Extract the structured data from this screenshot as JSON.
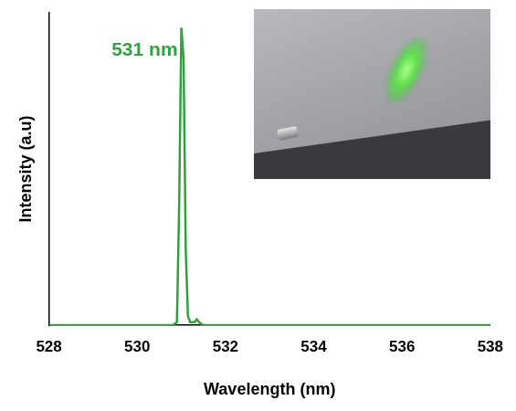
{
  "chart_data": {
    "type": "line",
    "x": [
      528,
      530.8,
      530.9,
      530.95,
      531.0,
      531.05,
      531.1,
      531.15,
      531.2,
      531.3,
      531.35,
      531.4,
      531.5,
      532,
      538
    ],
    "values": [
      0,
      0,
      0.01,
      0.4,
      1.0,
      0.9,
      0.25,
      0.03,
      0.01,
      0.01,
      0.02,
      0.01,
      0,
      0,
      0
    ],
    "color": "#33a043",
    "xlabel": "Wavelength (nm)",
    "ylabel": "Intensity (a.u)",
    "xlim": [
      528,
      538
    ],
    "xticks": [
      528,
      530,
      532,
      534,
      536,
      538
    ],
    "ylim": [
      0,
      1.05
    ],
    "tick_labels": "x",
    "grid": false,
    "annotations": [
      "531 nm"
    ]
  }
}
